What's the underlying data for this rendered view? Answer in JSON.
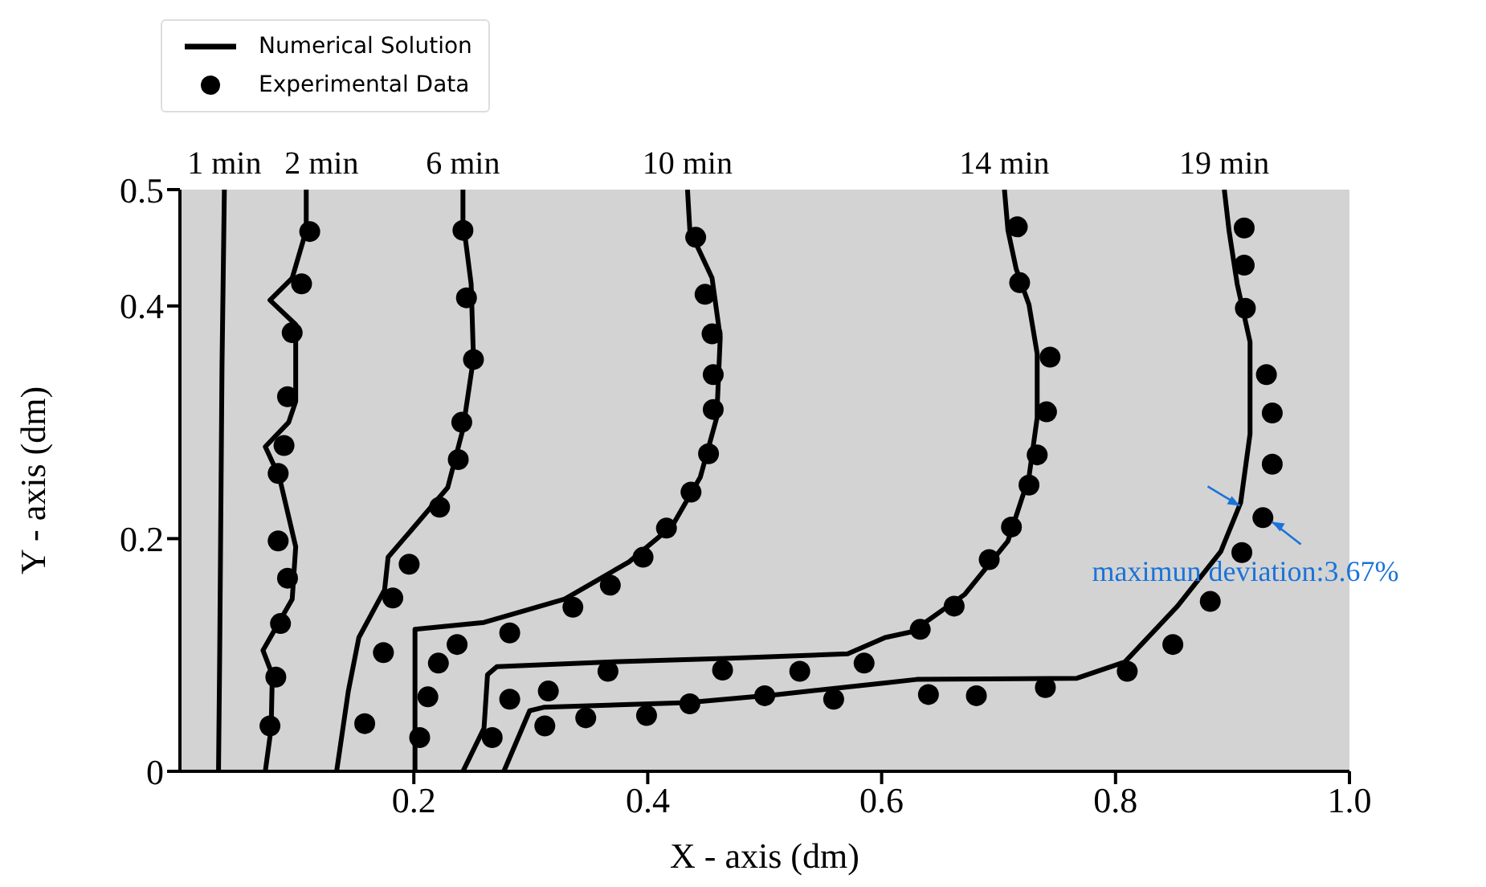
{
  "chart_data": {
    "type": "line",
    "xlabel": "X - axis (dm)",
    "ylabel": "Y - axis (dm)",
    "xlim": [
      0,
      1
    ],
    "ylim": [
      0,
      0.5
    ],
    "xticks": [
      0.2,
      0.4,
      0.6,
      0.8,
      {
        "value": 1,
        "label": "1.0"
      }
    ],
    "yticks": [
      0,
      0.2,
      0.4,
      0.5
    ],
    "grid": false,
    "legend": "top left",
    "series": [
      {
        "name": "Numerical Solution",
        "color": "#000000",
        "x": [
          0.038,
          0.036,
          0.034,
          0.033
        ],
        "values": [
          0.5,
          0.35,
          0.1,
          0
        ]
      },
      {
        "color": "#000000",
        "x": [
          0.108,
          0.108,
          0.096,
          0.077,
          0.099,
          0.099,
          0.093,
          0.073,
          0.085,
          0.099,
          0.096,
          0.071,
          0.079,
          0.078,
          0.073
        ],
        "values": [
          0.5,
          0.465,
          0.424,
          0.405,
          0.384,
          0.318,
          0.3,
          0.279,
          0.253,
          0.193,
          0.148,
          0.104,
          0.083,
          0.037,
          0
        ]
      },
      {
        "color": "#000000",
        "x": [
          0.242,
          0.242,
          0.249,
          0.251,
          0.242,
          0.229,
          0.201,
          0.178,
          0.175,
          0.153,
          0.144,
          0.134
        ],
        "values": [
          0.5,
          0.474,
          0.419,
          0.355,
          0.294,
          0.244,
          0.211,
          0.184,
          0.156,
          0.115,
          0.069,
          0
        ]
      },
      {
        "color": "#000000",
        "x": [
          0.434,
          0.436,
          0.455,
          0.462,
          0.459,
          0.445,
          0.421,
          0.384,
          0.329,
          0.26,
          0.201,
          0.201,
          0.201
        ],
        "values": [
          0.5,
          0.465,
          0.424,
          0.373,
          0.304,
          0.253,
          0.211,
          0.18,
          0.148,
          0.128,
          0.122,
          0.014,
          0
        ]
      },
      {
        "color": "#000000",
        "x": [
          0.242,
          0.26,
          0.263,
          0.271,
          0.366,
          0.466,
          0.571,
          0.603,
          0.626,
          0.671,
          0.708,
          0.726,
          0.733,
          0.733,
          0.726,
          0.715,
          0.708,
          0.705
        ],
        "values": [
          0,
          0.037,
          0.083,
          0.09,
          0.094,
          0.097,
          0.101,
          0.115,
          0.12,
          0.152,
          0.198,
          0.253,
          0.304,
          0.359,
          0.401,
          0.432,
          0.465,
          0.5
        ]
      },
      {
        "color": "#000000",
        "x": [
          0.277,
          0.299,
          0.311,
          0.434,
          0.511,
          0.603,
          0.63,
          0.767,
          0.808,
          0.853,
          0.89,
          0.907,
          0.915,
          0.915,
          0.904,
          0.897,
          0.893
        ],
        "values": [
          0,
          0.052,
          0.055,
          0.059,
          0.066,
          0.076,
          0.079,
          0.08,
          0.094,
          0.142,
          0.189,
          0.231,
          0.29,
          0.369,
          0.419,
          0.465,
          0.5
        ]
      },
      {
        "type": "scatter",
        "name": "Experimental Data",
        "color": "#000000",
        "x": [
          0.111,
          0.104,
          0.096,
          0.092,
          0.089,
          0.084,
          0.084,
          0.092,
          0.086,
          0.082,
          0.077
        ],
        "values": [
          0.464,
          0.419,
          0.377,
          0.322,
          0.28,
          0.256,
          0.198,
          0.166,
          0.127,
          0.081,
          0.039
        ]
      },
      {
        "type": "scatter",
        "color": "#000000",
        "x": [
          0.242,
          0.245,
          0.251,
          0.241,
          0.238,
          0.222,
          0.196,
          0.182,
          0.174,
          0.158
        ],
        "values": [
          0.465,
          0.407,
          0.354,
          0.3,
          0.268,
          0.227,
          0.178,
          0.149,
          0.102,
          0.041
        ]
      },
      {
        "type": "scatter",
        "color": "#000000",
        "x": [
          0.441,
          0.449,
          0.455,
          0.456,
          0.456,
          0.452,
          0.437,
          0.416,
          0.396,
          0.368,
          0.336,
          0.282,
          0.237,
          0.221,
          0.212,
          0.205
        ],
        "values": [
          0.459,
          0.41,
          0.376,
          0.341,
          0.311,
          0.273,
          0.24,
          0.209,
          0.184,
          0.16,
          0.141,
          0.119,
          0.109,
          0.093,
          0.064,
          0.029
        ]
      },
      {
        "type": "scatter",
        "color": "#000000",
        "x": [
          0.267,
          0.282,
          0.315,
          0.366,
          0.464,
          0.53,
          0.585,
          0.633,
          0.662,
          0.692,
          0.711,
          0.726,
          0.733,
          0.741,
          0.744,
          0.718,
          0.716
        ],
        "values": [
          0.029,
          0.062,
          0.069,
          0.086,
          0.087,
          0.086,
          0.093,
          0.122,
          0.142,
          0.182,
          0.21,
          0.246,
          0.272,
          0.309,
          0.356,
          0.42,
          0.468
        ]
      },
      {
        "type": "scatter",
        "color": "#000000",
        "x": [
          0.312,
          0.347,
          0.399,
          0.436,
          0.5,
          0.559,
          0.64,
          0.681,
          0.74,
          0.81,
          0.849,
          0.881,
          0.908,
          0.926,
          0.934,
          0.934,
          0.929,
          0.911,
          0.91,
          0.91
        ],
        "values": [
          0.039,
          0.046,
          0.048,
          0.058,
          0.065,
          0.062,
          0.066,
          0.065,
          0.072,
          0.086,
          0.109,
          0.146,
          0.188,
          0.218,
          0.264,
          0.308,
          0.341,
          0.398,
          0.435,
          0.467
        ]
      }
    ],
    "annotations": [
      {
        "text": "1 min",
        "x": 0.038,
        "y": 0.5
      },
      {
        "text": "2 min",
        "x": 0.108,
        "y": 0.5
      },
      {
        "text": "6 min",
        "x": 0.242,
        "y": 0.5
      },
      {
        "text": "10 min",
        "x": 0.434,
        "y": 0.5
      },
      {
        "text": "14 min",
        "x": 0.705,
        "y": 0.5
      },
      {
        "text": "19 min",
        "x": 0.893,
        "y": 0.5
      },
      {
        "text": "maximun deviation:3.67%",
        "x": 0.92,
        "y": 0.22
      }
    ]
  }
}
